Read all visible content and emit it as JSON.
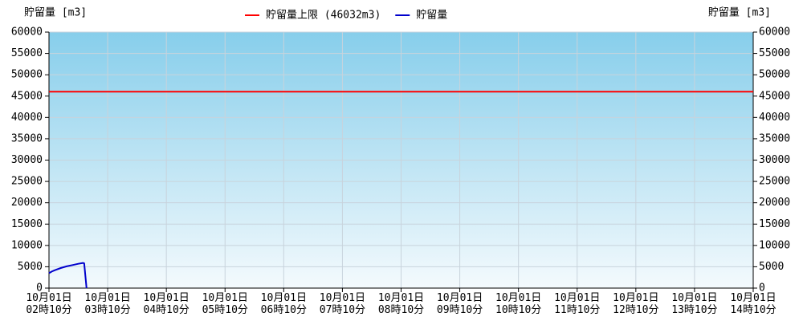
{
  "chart_data": {
    "type": "line",
    "y_label": "貯留量 [m3]",
    "y2_label": "貯留量 [m3]",
    "xlim": [
      0,
      12
    ],
    "xticks": [
      {
        "value": 0,
        "label": "10月01日\n02時10分"
      },
      {
        "value": 1,
        "label": "10月01日\n03時10分"
      },
      {
        "value": 2,
        "label": "10月01日\n04時10分"
      },
      {
        "value": 3,
        "label": "10月01日\n05時10分"
      },
      {
        "value": 4,
        "label": "10月01日\n06時10分"
      },
      {
        "value": 5,
        "label": "10月01日\n07時10分"
      },
      {
        "value": 6,
        "label": "10月01日\n08時10分"
      },
      {
        "value": 7,
        "label": "10月01日\n09時10分"
      },
      {
        "value": 8,
        "label": "10月01日\n10時10分"
      },
      {
        "value": 9,
        "label": "10月01日\n11時10分"
      },
      {
        "value": 10,
        "label": "10月01日\n12時10分"
      },
      {
        "value": 11,
        "label": "10月01日\n13時10分"
      },
      {
        "value": 12,
        "label": "10月01日\n14時10分"
      }
    ],
    "ylim": [
      0,
      60000
    ],
    "yticks": [
      0,
      5000,
      10000,
      15000,
      20000,
      25000,
      30000,
      35000,
      40000,
      45000,
      50000,
      55000,
      60000
    ],
    "y2lim": [
      0,
      60000
    ],
    "y2ticks": [
      0,
      5000,
      10000,
      15000,
      20000,
      25000,
      30000,
      35000,
      40000,
      45000,
      50000,
      55000,
      60000
    ],
    "grid": true,
    "legend": "top",
    "series": [
      {
        "name": "貯留量上限 (46032m3)",
        "color": "#ff0000",
        "x": [
          0,
          12
        ],
        "values": [
          46032,
          46032
        ]
      },
      {
        "name": "貯留量",
        "color": "#0000cc",
        "x": [
          0,
          0.05,
          0.1,
          0.2,
          0.3,
          0.4,
          0.5,
          0.58,
          0.6,
          0.64
        ],
        "values": [
          3500,
          3900,
          4200,
          4700,
          5100,
          5400,
          5700,
          5900,
          5800,
          0
        ]
      }
    ]
  }
}
